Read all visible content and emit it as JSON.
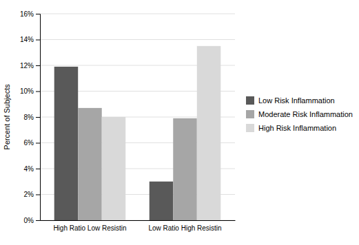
{
  "chart_data": {
    "type": "bar",
    "categories": [
      "High Ratio Low Resistin",
      "Low Ratio High Resistin"
    ],
    "series": [
      {
        "name": "Low Risk Inflammation",
        "color": "#595959",
        "values": [
          11.9,
          3.0
        ]
      },
      {
        "name": "Moderate Risk Inflammation",
        "color": "#a6a6a6",
        "values": [
          8.7,
          7.9
        ]
      },
      {
        "name": "High Risk Inflammation",
        "color": "#d9d9d9",
        "values": [
          8.0,
          13.5
        ]
      }
    ],
    "y_label": "Percent of Subjects",
    "ylim": [
      0,
      16
    ],
    "yticks": [
      {
        "value": 0,
        "label": "0%"
      },
      {
        "value": 2,
        "label": "2%"
      },
      {
        "value": 4,
        "label": "4%"
      },
      {
        "value": 6,
        "label": "6%"
      },
      {
        "value": 8,
        "label": "8%"
      },
      {
        "value": 10,
        "label": "10%"
      },
      {
        "value": 12,
        "label": "12%"
      },
      {
        "value": 14,
        "label": "14%"
      },
      {
        "value": 16,
        "label": "16%"
      }
    ],
    "grid": true,
    "legend": "right"
  }
}
